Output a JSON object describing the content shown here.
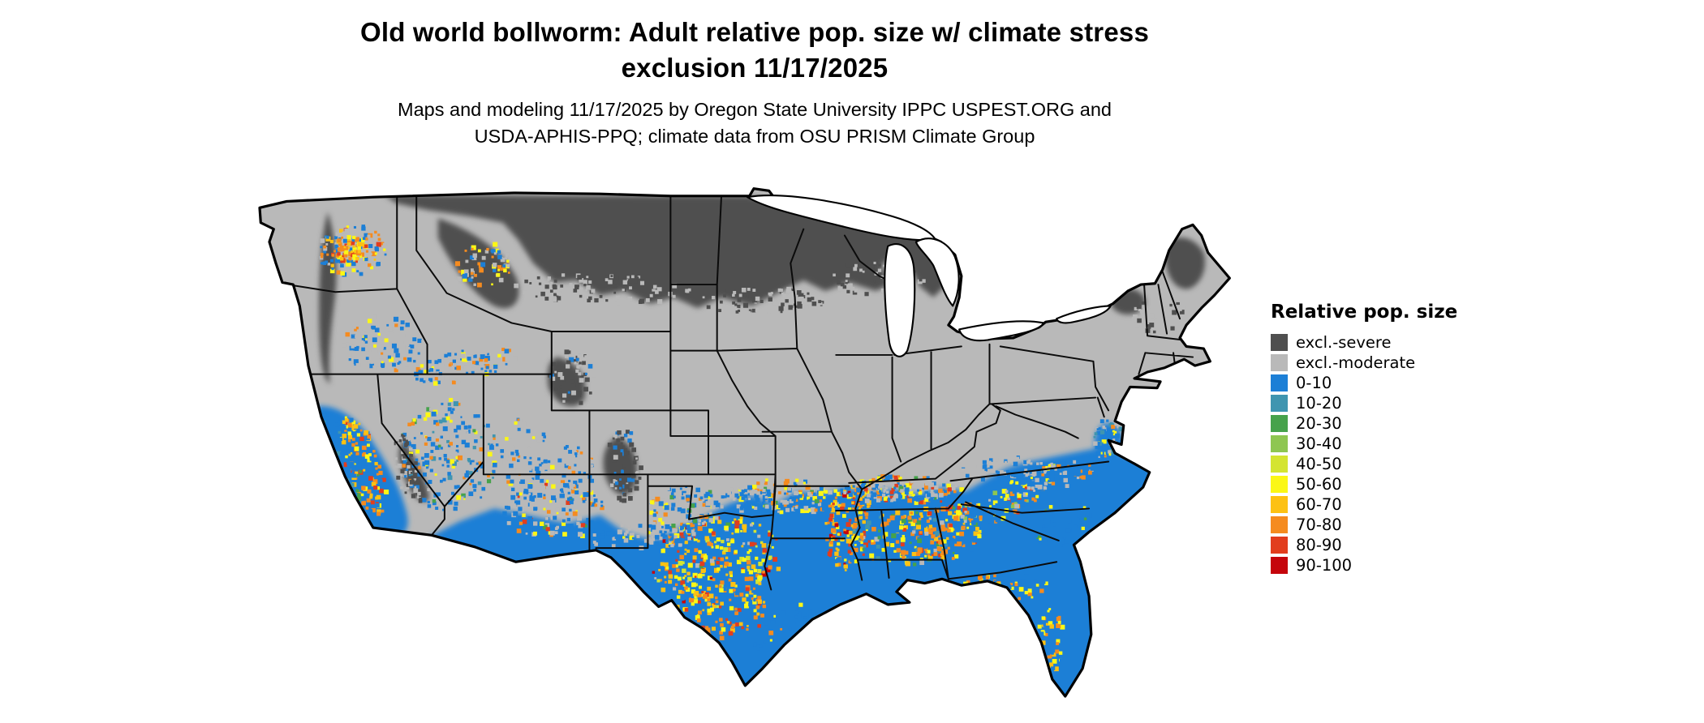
{
  "figure": {
    "title_line1": "Old world bollworm: Adult relative pop. size w/ climate stress",
    "title_line2": "exclusion 11/17/2025",
    "subtitle_line1": "Maps and modeling 11/17/2025 by Oregon State University IPPC USPEST.ORG and",
    "subtitle_line2": "USDA-APHIS-PPQ; climate data from OSU PRISM Climate Group"
  },
  "legend": {
    "title": "Relative pop. size",
    "items": [
      {
        "label": "excl.-severe",
        "color": "#4f4f4f"
      },
      {
        "label": "excl.-moderate",
        "color": "#b9b9b9"
      },
      {
        "label": "0-10",
        "color": "#1c7fd6"
      },
      {
        "label": "10-20",
        "color": "#3f95b0"
      },
      {
        "label": "20-30",
        "color": "#46a24b"
      },
      {
        "label": "30-40",
        "color": "#8ec651"
      },
      {
        "label": "40-50",
        "color": "#d4e431"
      },
      {
        "label": "50-60",
        "color": "#fbf716"
      },
      {
        "label": "60-70",
        "color": "#fdc113"
      },
      {
        "label": "70-80",
        "color": "#f58b1f"
      },
      {
        "label": "80-90",
        "color": "#e23d1d"
      },
      {
        "label": "90-100",
        "color": "#c5050c"
      }
    ]
  }
}
